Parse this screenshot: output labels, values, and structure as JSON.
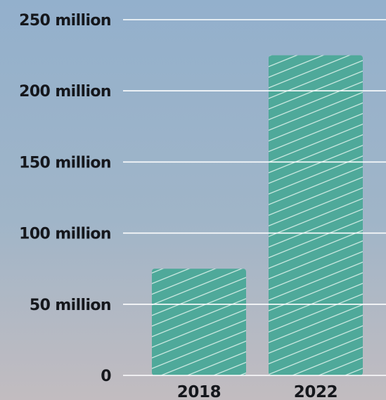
{
  "chart_data": {
    "type": "bar",
    "title": "",
    "xlabel": "",
    "ylabel": "",
    "categories": [
      "2018",
      "2022"
    ],
    "values": [
      75000000,
      225000000
    ],
    "ylim": [
      0,
      250000000
    ],
    "y_ticks": [
      {
        "value": 0,
        "label": "0"
      },
      {
        "value": 50000000,
        "label": "50 million"
      },
      {
        "value": 100000000,
        "label": "100 million"
      },
      {
        "value": 150000000,
        "label": "150 million"
      },
      {
        "value": 200000000,
        "label": "200 million"
      },
      {
        "value": 250000000,
        "label": "250 million"
      }
    ],
    "grid": true,
    "legend": "none",
    "colors": {
      "bar": "#4fa99a",
      "bar_hatch": "#d8efe9",
      "gridline": "#ffffff",
      "text": "#15171c"
    }
  }
}
